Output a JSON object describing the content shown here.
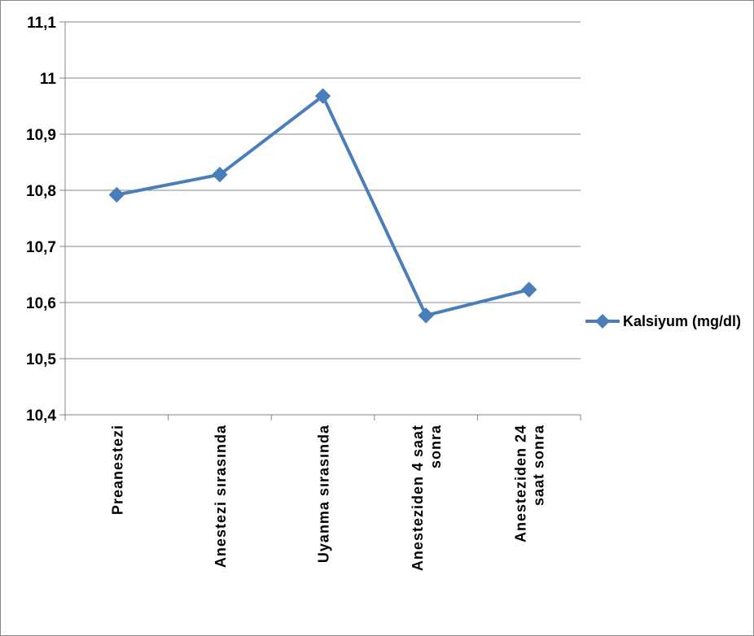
{
  "chart_data": {
    "type": "line",
    "categories": [
      [
        "Preanestezi"
      ],
      [
        "Anestezi sırasında"
      ],
      [
        "Uyanma sırasında"
      ],
      [
        "Anesteziden 4 saat",
        "sonra"
      ],
      [
        "Anesteziden 24",
        "saat sonra"
      ]
    ],
    "series": [
      {
        "name": "Kalsiyum (mg/dl)",
        "color": "#4a7ebb",
        "values": [
          10.792,
          10.828,
          10.968,
          10.577,
          10.623
        ]
      }
    ],
    "y_ticks": [
      "10,4",
      "10,5",
      "10,6",
      "10,7",
      "10,8",
      "10,9",
      "11",
      "11,1"
    ],
    "ylim": [
      10.4,
      11.1
    ],
    "grid": true,
    "legend_position": "right",
    "title": "",
    "xlabel": "",
    "ylabel": ""
  }
}
